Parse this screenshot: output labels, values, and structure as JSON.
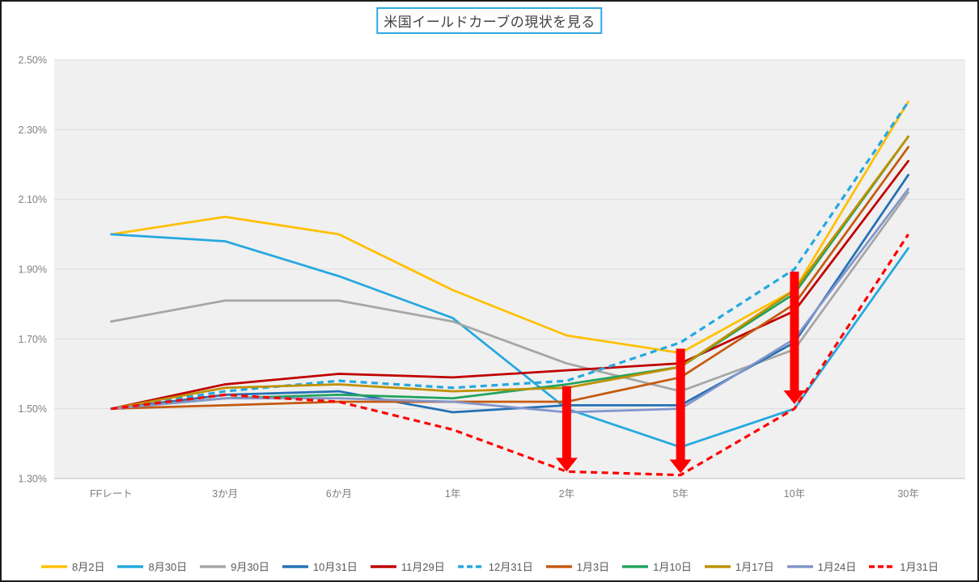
{
  "title": {
    "text": "米国イールドカーブの現状を見る"
  },
  "colors": {
    "page_border": "#1B1B1B",
    "title_border": "#2FA9E0",
    "title_text": "#404040",
    "plot_background": "#F0F0F0",
    "gridline": "#DBDBDB",
    "axis_line": "#BFBFBF",
    "axis_text": "#7F7F7F",
    "legend_text": "#595959",
    "arrow": "#FF0000"
  },
  "chart_data": {
    "type": "line",
    "title": "米国イールドカーブの現状を見る",
    "categories": [
      "FFレート",
      "3か月",
      "6か月",
      "1年",
      "2年",
      "5年",
      "10年",
      "30年"
    ],
    "series": [
      {
        "name": "8月2日",
        "color": "#FFC000",
        "dash": false,
        "values": [
          2.0,
          2.05,
          2.0,
          1.84,
          1.71,
          1.66,
          1.84,
          2.38
        ]
      },
      {
        "name": "8月30日",
        "color": "#25A8E0",
        "dash": false,
        "values": [
          2.0,
          1.98,
          1.88,
          1.76,
          1.5,
          1.39,
          1.5,
          1.96
        ]
      },
      {
        "name": "9月30日",
        "color": "#A6A6A6",
        "dash": false,
        "values": [
          1.75,
          1.81,
          1.81,
          1.75,
          1.63,
          1.55,
          1.67,
          2.12
        ]
      },
      {
        "name": "10月31日",
        "color": "#2371B4",
        "dash": false,
        "values": [
          1.5,
          1.54,
          1.55,
          1.49,
          1.51,
          1.51,
          1.69,
          2.17
        ]
      },
      {
        "name": "11月29日",
        "color": "#C00000",
        "dash": false,
        "values": [
          1.5,
          1.57,
          1.6,
          1.59,
          1.61,
          1.63,
          1.78,
          2.21
        ]
      },
      {
        "name": "12月31日",
        "color": "#25A8E0",
        "dash": true,
        "values": [
          1.5,
          1.55,
          1.58,
          1.56,
          1.58,
          1.69,
          1.9,
          2.38
        ]
      },
      {
        "name": "1月3日",
        "color": "#C55A11",
        "dash": false,
        "values": [
          1.5,
          1.51,
          1.52,
          1.52,
          1.52,
          1.59,
          1.8,
          2.25
        ]
      },
      {
        "name": "1月10日",
        "color": "#21A35D",
        "dash": false,
        "values": [
          1.5,
          1.53,
          1.54,
          1.53,
          1.57,
          1.62,
          1.83,
          2.28
        ]
      },
      {
        "name": "1月17日",
        "color": "#BF9000",
        "dash": false,
        "values": [
          1.5,
          1.56,
          1.57,
          1.55,
          1.56,
          1.62,
          1.84,
          2.28
        ]
      },
      {
        "name": "1月24日",
        "color": "#8296CB",
        "dash": false,
        "values": [
          1.5,
          1.53,
          1.53,
          1.52,
          1.49,
          1.5,
          1.7,
          2.13
        ]
      },
      {
        "name": "1月31日",
        "color": "#FF0000",
        "dash": true,
        "values": [
          1.5,
          1.54,
          1.52,
          1.44,
          1.32,
          1.31,
          1.5,
          2.0
        ]
      }
    ],
    "y_axis": {
      "min": 1.3,
      "max": 2.5,
      "step": 0.2,
      "tick_values": [
        1.3,
        1.5,
        1.7,
        1.9,
        2.1,
        2.3,
        2.5
      ],
      "tick_labels": [
        "1.30%",
        "1.50%",
        "1.70%",
        "1.90%",
        "2.10%",
        "2.30%",
        "2.50%"
      ]
    },
    "xlabel": "",
    "ylabel": "",
    "grid": "horizontal",
    "legend_position": "bottom",
    "annotations": {
      "arrows": [
        {
          "category": "2年",
          "from": 1.565,
          "to": 1.32,
          "color": "#FF0000"
        },
        {
          "category": "5年",
          "from": 1.672,
          "to": 1.315,
          "color": "#FF0000"
        },
        {
          "category": "10年",
          "from": 1.893,
          "to": 1.513,
          "color": "#FF0000"
        }
      ]
    }
  }
}
